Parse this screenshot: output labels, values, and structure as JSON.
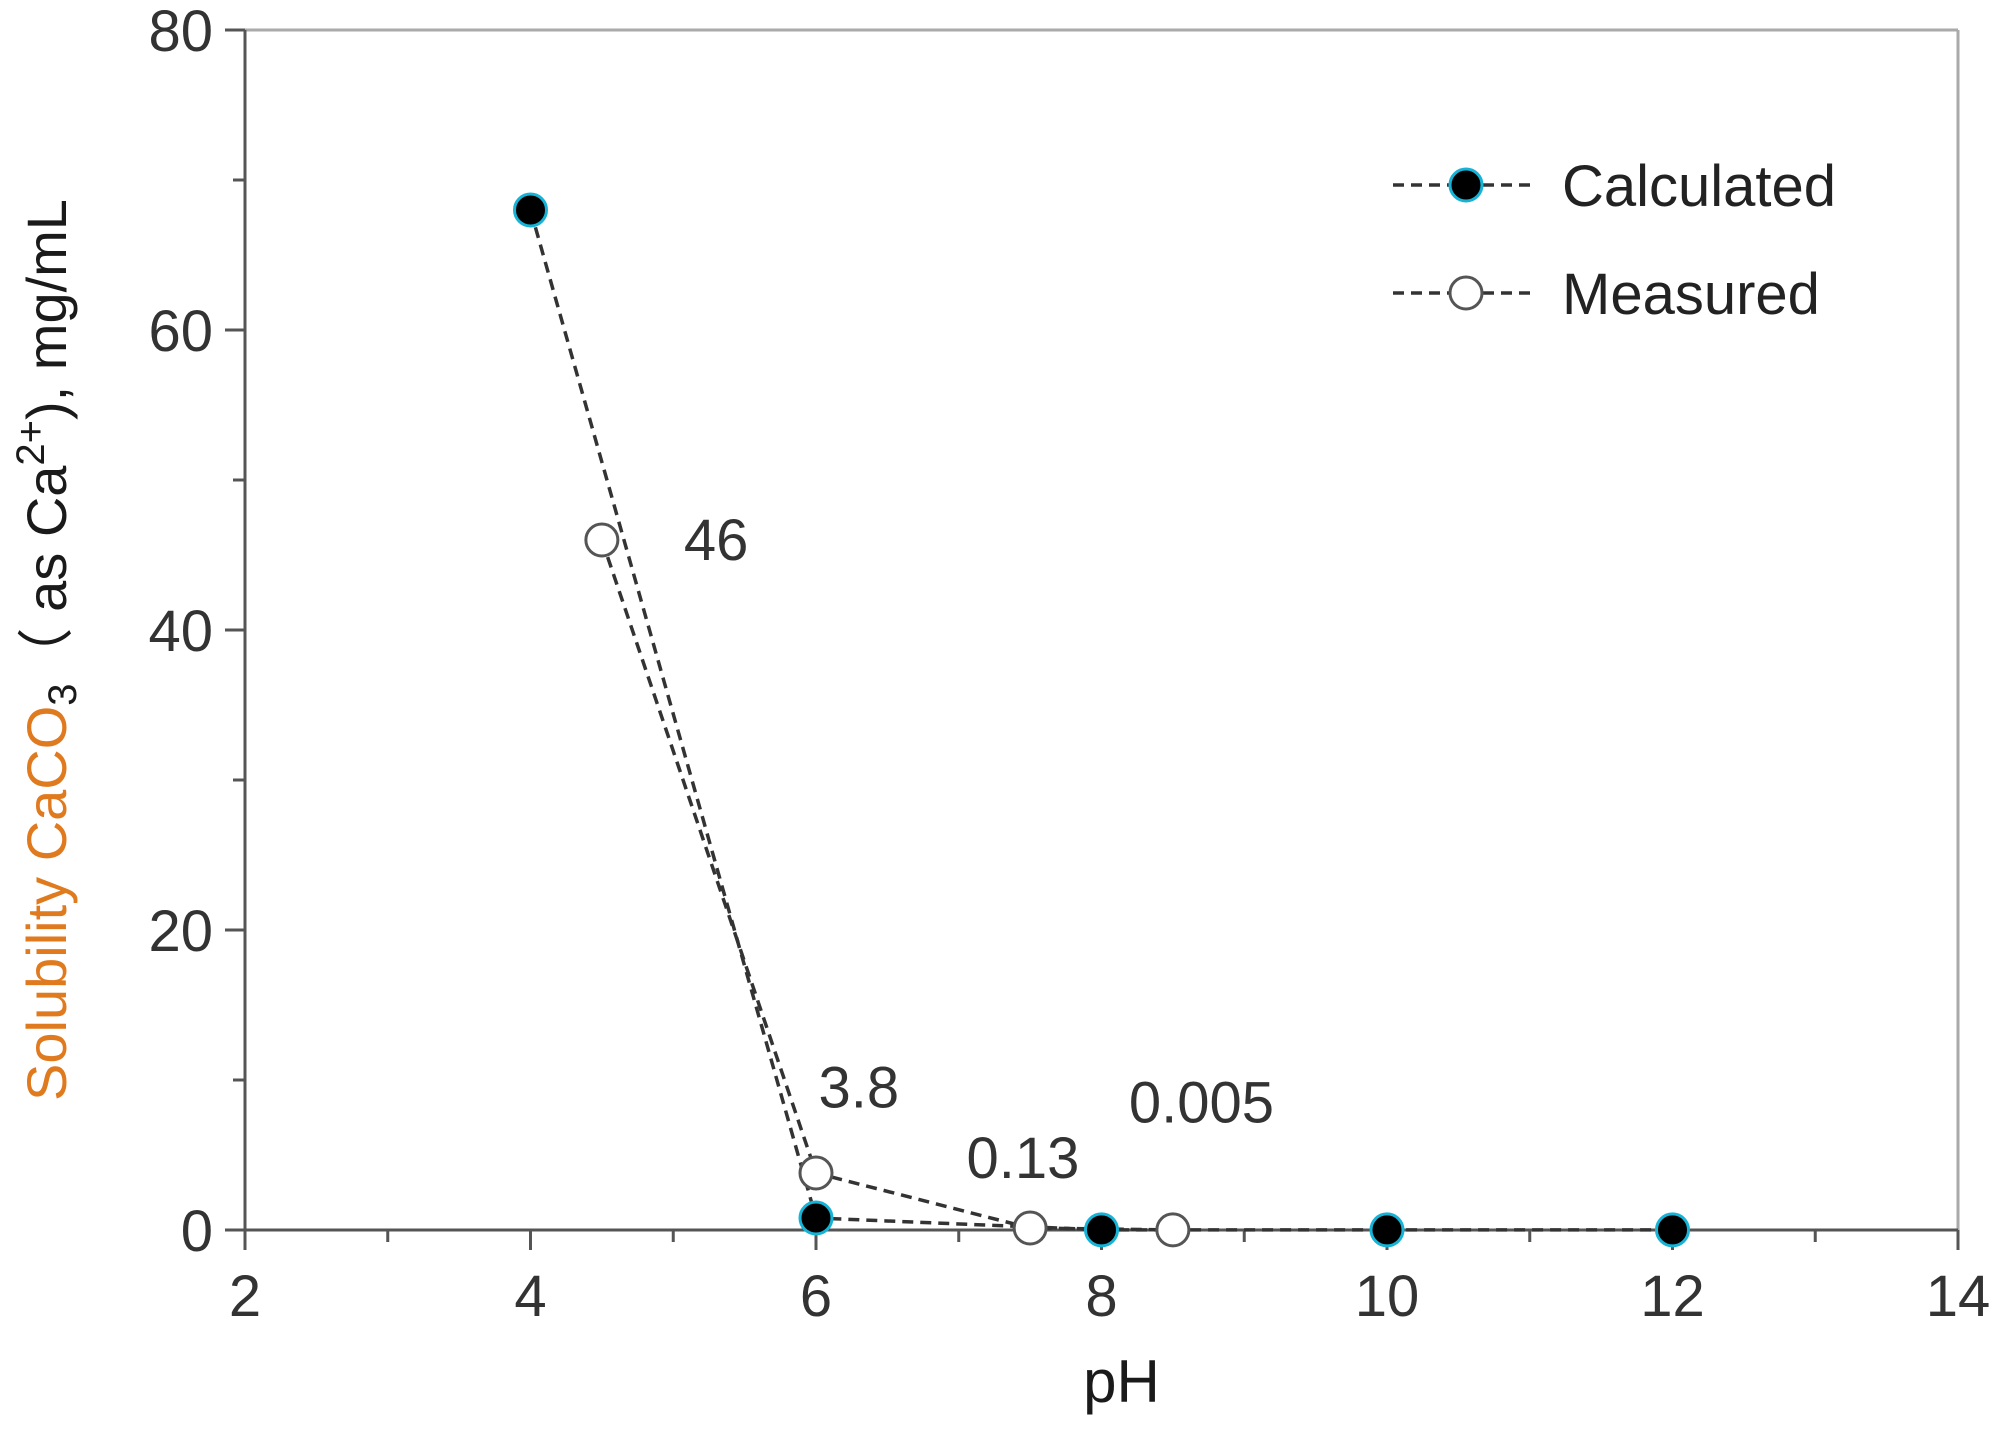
{
  "chart_data": {
    "type": "line",
    "title": "",
    "xlabel": "pH",
    "ylabel": {
      "prefix": "Solubility CaCO",
      "sub": "3",
      "middle": "（ as Ca",
      "sup": "2+",
      "suffix": "), mg/mL"
    },
    "xlim": [
      2,
      14
    ],
    "ylim": [
      0,
      80
    ],
    "xticks": [
      2,
      4,
      6,
      8,
      10,
      12,
      14
    ],
    "yticks": [
      0,
      20,
      40,
      60,
      80
    ],
    "legend_position": "top-right",
    "series": [
      {
        "name": "Calculated",
        "marker": "filled-circle",
        "line": "dashed",
        "x": [
          4,
          6,
          8,
          10,
          12
        ],
        "y": [
          68,
          0.8,
          0.01,
          0.005,
          0.005
        ]
      },
      {
        "name": "Measured",
        "marker": "open-circle",
        "line": "dashed",
        "x": [
          4.5,
          6,
          7.5,
          8.5
        ],
        "y": [
          46,
          3.8,
          0.13,
          0.005
        ]
      }
    ],
    "annotations": [
      {
        "text": "46",
        "x": 5.3,
        "y": 46
      },
      {
        "text": "3.8",
        "x": 6.3,
        "y": 9.5
      },
      {
        "text": "0.13",
        "x": 7.45,
        "y": 4.8
      },
      {
        "text": "0.005",
        "x": 8.7,
        "y": 8.5
      }
    ]
  },
  "colors": {
    "axis": "#555555",
    "frame_right": "#aaaaaa",
    "line": "#333333",
    "marker_fill": "#000000",
    "marker_edge": "#17b3d6",
    "open_marker_edge": "#555555",
    "ylabel_accent": "#e07a1f"
  }
}
